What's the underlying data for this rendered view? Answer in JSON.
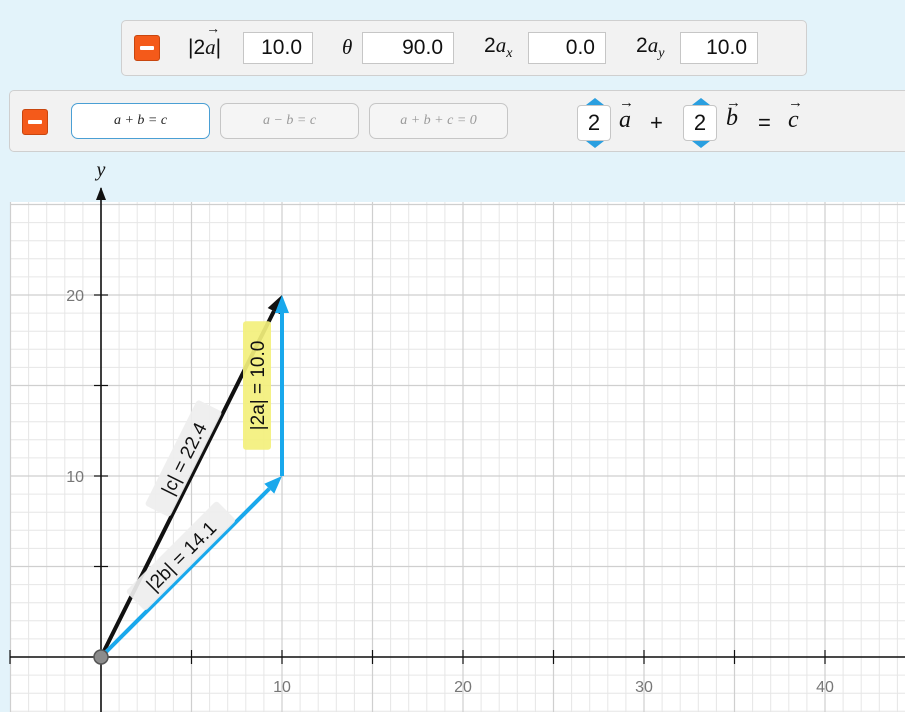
{
  "vector_panel": {
    "magnitude_label_prefix": "|2",
    "magnitude_label_vec": "a",
    "magnitude_label_suffix": "|",
    "magnitude_value": "10.0",
    "theta_label": "θ",
    "theta_value": "90.0",
    "ax_label_coef": "2",
    "ax_label_var": "a",
    "ax_label_sub": "x",
    "ax_value": "0.0",
    "ay_label_coef": "2",
    "ay_label_var": "a",
    "ay_label_sub": "y",
    "ay_value": "10.0"
  },
  "operation_panel": {
    "buttons": [
      "a + b = c",
      "a − b = c",
      "a + b + c = 0"
    ],
    "active_button": 0,
    "coef_a": "2",
    "coef_b": "2",
    "plus": "+",
    "equals": "=",
    "vec_a": "a",
    "vec_b": "b",
    "vec_c": "c"
  },
  "graph": {
    "y_axis_label": "y",
    "x_ticks": [
      "10",
      "20",
      "30",
      "40"
    ],
    "y_ticks": [
      "10",
      "20"
    ],
    "x_tick_values": [
      10,
      20,
      30,
      40
    ],
    "y_tick_values": [
      10,
      20
    ],
    "vectors": {
      "b": {
        "from": [
          0,
          0
        ],
        "to": [
          10,
          10
        ],
        "label": "|2b| = 14.1",
        "color": "#19a8ec"
      },
      "a": {
        "from": [
          10,
          10
        ],
        "to": [
          10,
          20
        ],
        "label": "|2a| = 10.0",
        "color": "#19a8ec",
        "label_bg": "#f3f07c"
      },
      "c": {
        "from": [
          0,
          0
        ],
        "to": [
          10,
          20
        ],
        "label": "|c| = 22.4",
        "color": "#111111"
      }
    },
    "colors": {
      "grid_major": "#cfcfcf",
      "grid_minor": "#e6e6e6",
      "axis": "#111111",
      "tick_label": "#777777"
    }
  }
}
